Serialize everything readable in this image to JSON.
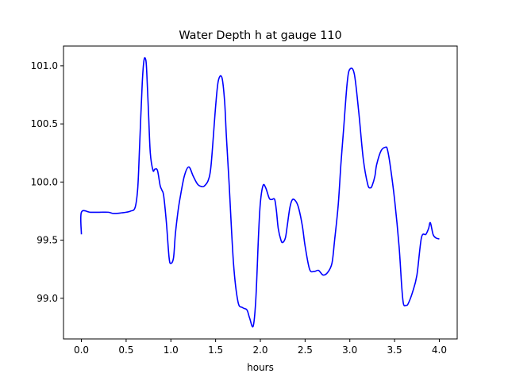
{
  "chart_data": {
    "type": "line",
    "title": "Water Depth h at gauge 110",
    "xlabel": "hours",
    "ylabel": "",
    "xlim": [
      -0.2,
      4.2
    ],
    "ylim": [
      98.65,
      101.17
    ],
    "xticks": [
      0.0,
      0.5,
      1.0,
      1.5,
      2.0,
      2.5,
      3.0,
      3.5,
      4.0
    ],
    "xtick_labels": [
      "0.0",
      "0.5",
      "1.0",
      "1.5",
      "2.0",
      "2.5",
      "3.0",
      "3.5",
      "4.0"
    ],
    "yticks": [
      99.0,
      99.5,
      100.0,
      100.5,
      101.0
    ],
    "ytick_labels": [
      "99.0",
      "99.5",
      "100.0",
      "100.5",
      "101.0"
    ],
    "grid": false,
    "line_color": "#0000ff",
    "series": [
      {
        "x": [
          0.0,
          0.0,
          0.1,
          0.2,
          0.3,
          0.35,
          0.4,
          0.45,
          0.5,
          0.55,
          0.6,
          0.63,
          0.65,
          0.68,
          0.7,
          0.72,
          0.73,
          0.75,
          0.77,
          0.8,
          0.82,
          0.85,
          0.88,
          0.9,
          0.92,
          0.95,
          0.98,
          1.0,
          1.03,
          1.05,
          1.08,
          1.1,
          1.15,
          1.2,
          1.25,
          1.3,
          1.35,
          1.38,
          1.42,
          1.45,
          1.5,
          1.53,
          1.57,
          1.6,
          1.62,
          1.65,
          1.7,
          1.75,
          1.8,
          1.85,
          1.88,
          1.92,
          1.95,
          1.98,
          2.0,
          2.03,
          2.06,
          2.1,
          2.13,
          2.16,
          2.18,
          2.2,
          2.23,
          2.25,
          2.28,
          2.3,
          2.33,
          2.36,
          2.4,
          2.43,
          2.47,
          2.5,
          2.55,
          2.6,
          2.65,
          2.7,
          2.75,
          2.8,
          2.83,
          2.87,
          2.9,
          2.93,
          2.97,
          3.0,
          3.05,
          3.1,
          3.15,
          3.2,
          3.23,
          3.25,
          3.28,
          3.3,
          3.35,
          3.4,
          3.42,
          3.45,
          3.5,
          3.55,
          3.58,
          3.6,
          3.63,
          3.65,
          3.7,
          3.75,
          3.8,
          3.85,
          3.88,
          3.9,
          3.93,
          3.96,
          4.0
        ],
        "y": [
          99.55,
          99.74,
          99.74,
          99.74,
          99.74,
          99.73,
          99.73,
          99.735,
          99.74,
          99.75,
          99.78,
          99.95,
          100.3,
          100.85,
          101.05,
          101.05,
          100.95,
          100.6,
          100.25,
          100.1,
          100.11,
          100.1,
          99.97,
          99.93,
          99.88,
          99.65,
          99.35,
          99.3,
          99.35,
          99.55,
          99.75,
          99.85,
          100.05,
          100.13,
          100.05,
          99.98,
          99.96,
          99.97,
          100.02,
          100.15,
          100.65,
          100.87,
          100.9,
          100.7,
          100.4,
          100.0,
          99.3,
          98.97,
          98.92,
          98.9,
          98.83,
          98.76,
          99.0,
          99.55,
          99.82,
          99.97,
          99.95,
          99.86,
          99.85,
          99.85,
          99.75,
          99.6,
          99.5,
          99.48,
          99.52,
          99.62,
          99.78,
          99.85,
          99.83,
          99.77,
          99.62,
          99.45,
          99.25,
          99.23,
          99.24,
          99.2,
          99.22,
          99.3,
          99.5,
          99.8,
          100.15,
          100.45,
          100.85,
          100.97,
          100.93,
          100.6,
          100.2,
          99.98,
          99.95,
          99.97,
          100.05,
          100.15,
          100.27,
          100.3,
          100.28,
          100.15,
          99.85,
          99.45,
          99.1,
          98.95,
          98.94,
          98.95,
          99.05,
          99.2,
          99.52,
          99.55,
          99.6,
          99.65,
          99.55,
          99.52,
          99.51
        ]
      }
    ]
  }
}
